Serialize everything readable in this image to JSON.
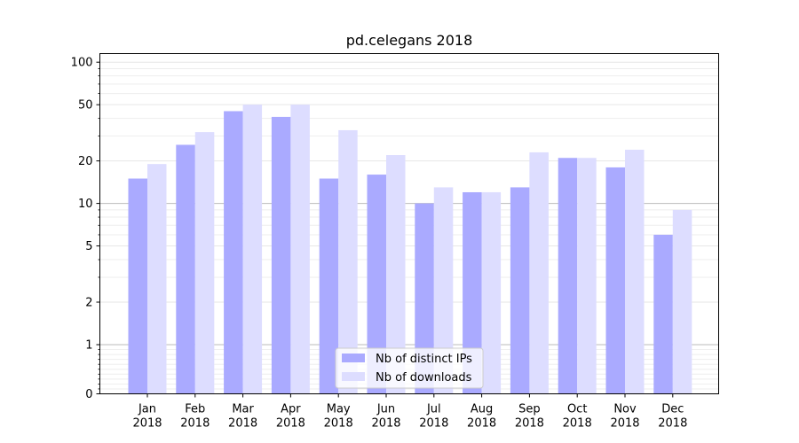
{
  "chart_data": {
    "type": "bar",
    "title": "pd.celegans 2018",
    "xlabel": "",
    "ylabel": "",
    "yscale": "symlog",
    "ylim": [
      0,
      130
    ],
    "categories": [
      "Jan\n2018",
      "Feb\n2018",
      "Mar\n2018",
      "Apr\n2018",
      "May\n2018",
      "Jun\n2018",
      "Jul\n2018",
      "Aug\n2018",
      "Sep\n2018",
      "Oct\n2018",
      "Nov\n2018",
      "Dec\n2018"
    ],
    "yticks": [
      0,
      1,
      2,
      5,
      10,
      20,
      50,
      100
    ],
    "series": [
      {
        "name": "Nb of distinct IPs",
        "color": "#aaaaff",
        "values": [
          15,
          26,
          45,
          41,
          15,
          16,
          10,
          12,
          13,
          21,
          18,
          6
        ]
      },
      {
        "name": "Nb of downloads",
        "color": "#ddddff",
        "values": [
          19,
          32,
          50,
          50,
          33,
          22,
          13,
          12,
          23,
          21,
          24,
          9
        ]
      }
    ],
    "legend": "lower-center",
    "grid": "y"
  }
}
